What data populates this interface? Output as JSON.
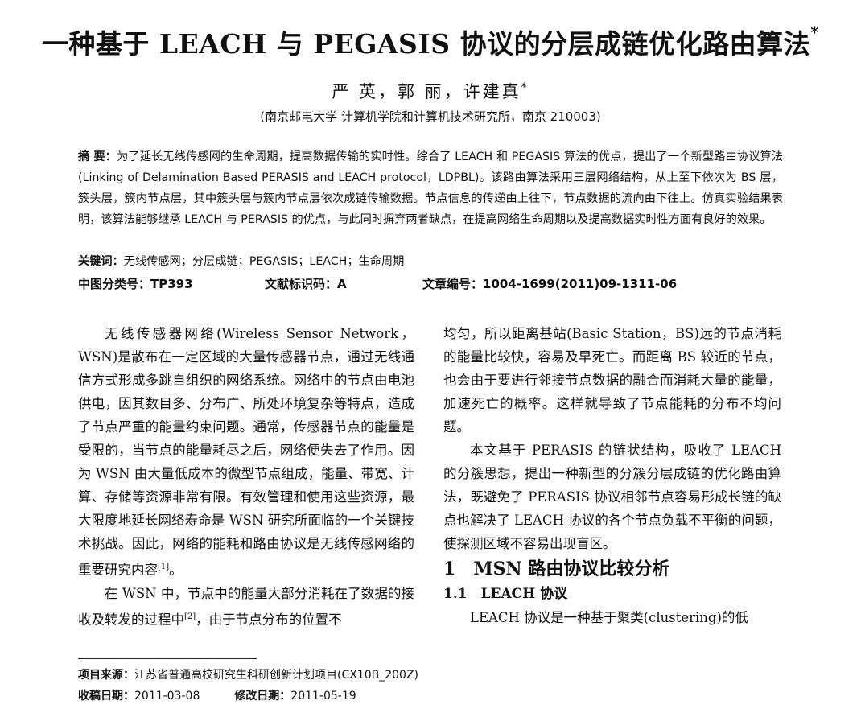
{
  "title": "一种基于 LEACH 与 PEGASIS 协议的分层成链优化路由算法",
  "title_mark": "*",
  "authors": "严 英，郭 丽，许建真",
  "author_mark": "*",
  "affiliation": "(南京邮电大学 计算机学院和计算机技术研究所，南京 210003)",
  "abstract": {
    "label": "摘 要：",
    "text": "为了延长无线传感网的生命周期，提高数据传输的实时性。综合了 LEACH 和 PEGASIS 算法的优点，提出了一个新型路由协议算法(Linking of Delamination Based PERASIS and LEACH protocol，LDPBL)。该路由算法采用三层网络结构，从上至下依次为 BS 层，簇头层，簇内节点层，其中簇头层与簇内节点层依次成链传输数据。节点信息的传递由上往下，节点数据的流向由下往上。仿真实验结果表明，该算法能够继承 LEACH 与 PERASIS 的优点，与此同时摒弃两者缺点，在提高网络生命周期以及提高数据实时性方面有良好的效果。"
  },
  "keywords": {
    "label": "关键词：",
    "text": "无线传感网；分层成链；PEGASIS；LEACH；生命周期"
  },
  "classification": {
    "clc": "中图分类号：TP393",
    "doc_code": "文献标识码：A",
    "article_no": "文章编号：1004-1699(2011)09-1311-06"
  },
  "left_column": {
    "p1": "无线传感器网络(Wireless Sensor Network，WSN)是散布在一定区域的大量传感器节点，通过无线通信方式形成多跳自组织的网络系统。网络中的节点由电池供电，因其数目多、分布广、所处环境复杂等特点，造成了节点严重的能量约束问题。通常，传感器节点的能量是受限的，当节点的能量耗尽之后，网络便失去了作用。因为 WSN 由大量低成本的微型节点组成，能量、带宽、计算、存储等资源非常有限。有效管理和使用这些资源，最大限度地延长网络寿命是 WSN 研究所面临的一个关键技术挑战。因此，网络的能耗和路由协议是无线传感网络的重要研究内容",
    "p1_ref": "[1]",
    "p1_end": "。",
    "p2": "在 WSN 中，节点中的能量大部分消耗在了数据的接收及转发的过程中",
    "p2_ref": "[2]",
    "p2_end": "，由于节点分布的位置不"
  },
  "right_column": {
    "p1": "均匀，所以距离基站(Basic Station，BS)远的节点消耗的能量比较快，容易及早死亡。而距离 BS 较近的节点，也会由于要进行邻接节点数据的融合而消耗大量的能量，加速死亡的概率。这样就导致了节点能耗的分布不均问题。",
    "p2": "本文基于 PERASIS 的链状结构，吸收了 LEACH 的分簇思想，提出一种新型的分簇分层成链的优化路由算法，既避免了 PERASIS 协议相邻节点容易形成长链的缺点也解决了 LEACH 协议的各个节点负载不平衡的问题，使探测区域不容易出现盲区。",
    "h1": "1　MSN 路由协议比较分析",
    "h2": "1.1　LEACH 协议",
    "p3": "LEACH 协议是一种基于聚类(clustering)的低"
  },
  "footnotes": {
    "fund_label": "项目来源：",
    "fund_text": "江苏省普通高校研究生科研创新计划项目(CX10B_200Z)",
    "received_label": "收稿日期：",
    "received": "2011-03-08",
    "revised_label": "修改日期：",
    "revised": "2011-05-19"
  }
}
